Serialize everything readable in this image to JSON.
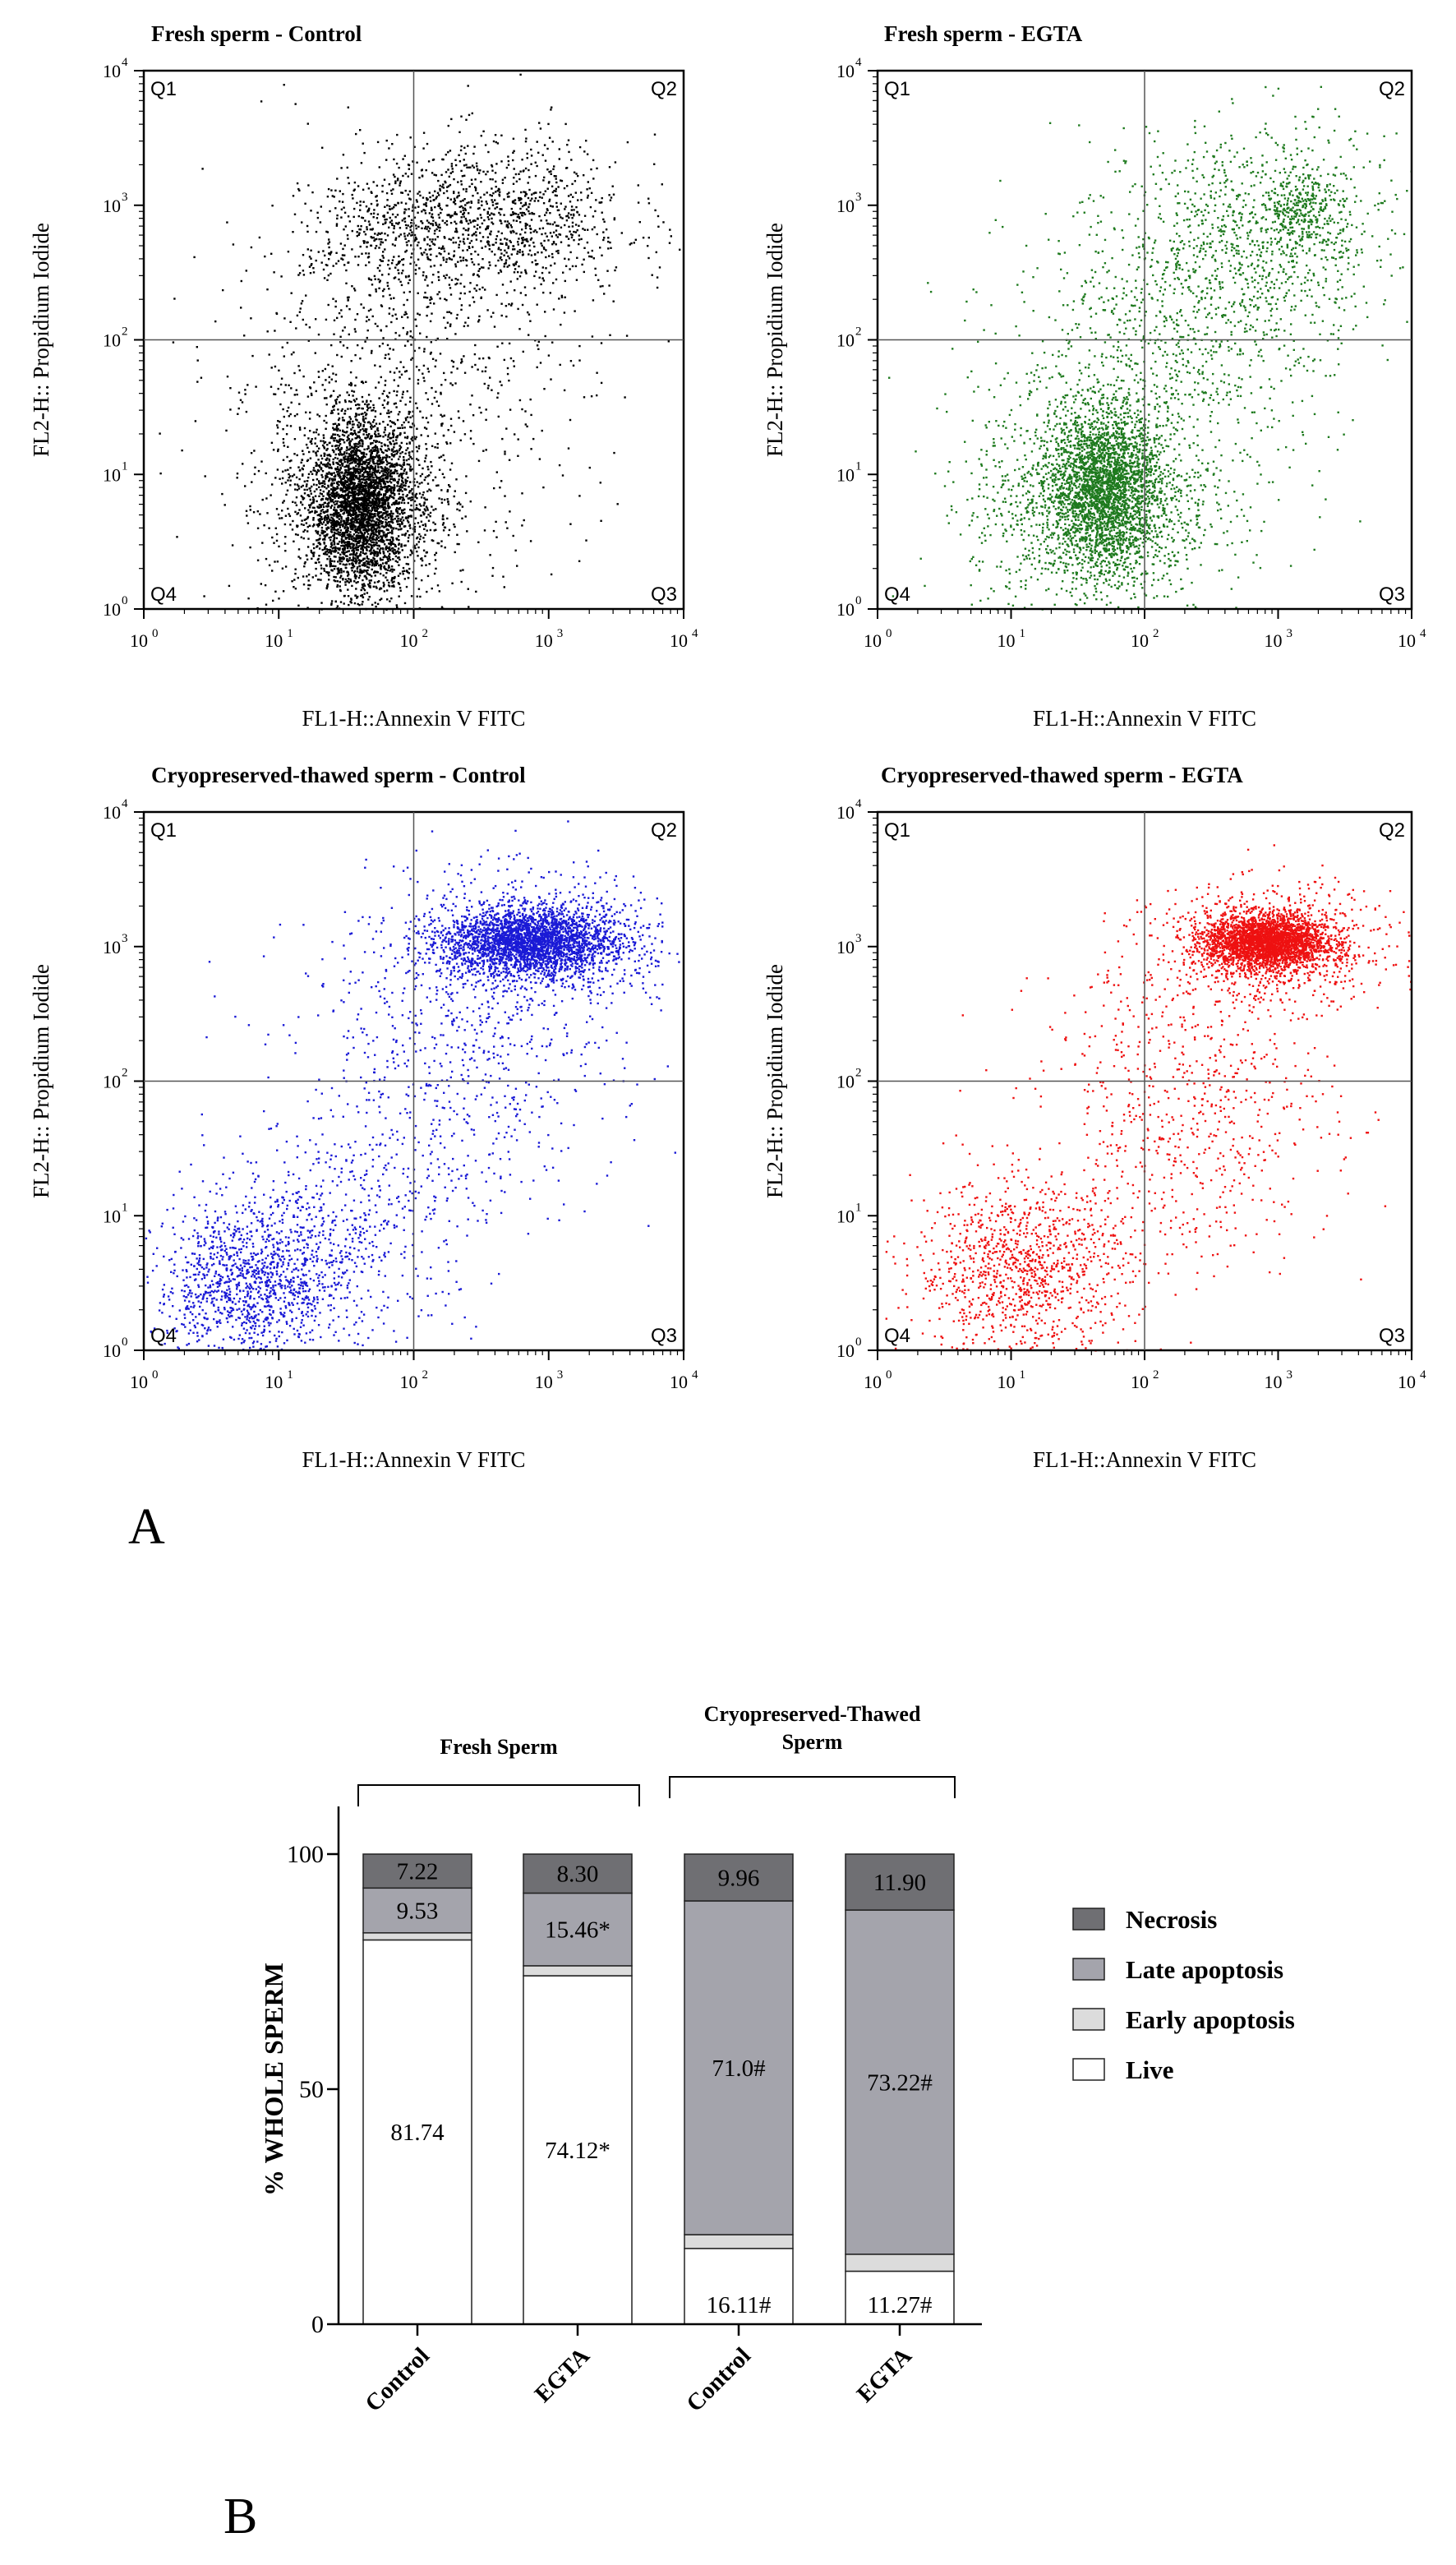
{
  "panel_a_label": "A",
  "panel_b_label": "B",
  "chart_data": [
    {
      "type": "scatter",
      "title": "Fresh sperm - Control",
      "xlabel": "FL1-H::Annexin V FITC",
      "ylabel": "FL2-H:: Propidium Iodide",
      "xscale": "log",
      "yscale": "log",
      "xlim": [
        1,
        10000
      ],
      "ylim": [
        1,
        10000
      ],
      "gate": [
        100,
        100
      ],
      "color": "#000000",
      "quadrants": [
        "Q1",
        "Q2",
        "Q3",
        "Q4"
      ],
      "x_tick_labels": [
        "10",
        "10",
        "10",
        "10",
        "10"
      ],
      "x_tick_exponents": [
        "0",
        "1",
        "2",
        "3",
        "4"
      ],
      "y_tick_labels": [
        "10",
        "10",
        "10",
        "10",
        "10"
      ],
      "y_tick_exponents": [
        "0",
        "1",
        "2",
        "3",
        "4"
      ],
      "clusters": [
        {
          "center": [
            40,
            6
          ],
          "spread": [
            0.18,
            0.3
          ],
          "n": 2800
        },
        {
          "center": [
            40,
            6
          ],
          "spread": [
            0.35,
            0.45
          ],
          "n": 1200
        },
        {
          "center": [
            400,
            800
          ],
          "spread": [
            0.5,
            0.3
          ],
          "n": 1100
        },
        {
          "center": [
            60,
            600
          ],
          "spread": [
            0.3,
            0.25
          ],
          "n": 300
        },
        {
          "center": [
            80,
            60
          ],
          "spread": [
            0.7,
            0.7
          ],
          "n": 800
        }
      ]
    },
    {
      "type": "scatter",
      "title": "Fresh sperm - EGTA",
      "xlabel": "FL1-H::Annexin V FITC",
      "ylabel": "FL2-H:: Propidium Iodide",
      "xscale": "log",
      "yscale": "log",
      "xlim": [
        1,
        10000
      ],
      "ylim": [
        1,
        10000
      ],
      "gate": [
        100,
        100
      ],
      "color": "#1e7a1e",
      "quadrants": [
        "Q1",
        "Q2",
        "Q3",
        "Q4"
      ],
      "x_tick_labels": [
        "10",
        "10",
        "10",
        "10",
        "10"
      ],
      "x_tick_exponents": [
        "0",
        "1",
        "2",
        "3",
        "4"
      ],
      "y_tick_labels": [
        "10",
        "10",
        "10",
        "10",
        "10"
      ],
      "y_tick_exponents": [
        "0",
        "1",
        "2",
        "3",
        "4"
      ],
      "clusters": [
        {
          "center": [
            50,
            8
          ],
          "spread": [
            0.2,
            0.28
          ],
          "n": 2200
        },
        {
          "center": [
            40,
            6
          ],
          "spread": [
            0.45,
            0.45
          ],
          "n": 1500
        },
        {
          "center": [
            800,
            600
          ],
          "spread": [
            0.5,
            0.4
          ],
          "n": 900
        },
        {
          "center": [
            1500,
            1000
          ],
          "spread": [
            0.15,
            0.15
          ],
          "n": 250
        },
        {
          "center": [
            150,
            80
          ],
          "spread": [
            0.6,
            0.6
          ],
          "n": 900
        }
      ]
    },
    {
      "type": "scatter",
      "title": "Cryopreserved-thawed sperm - Control",
      "xlabel": "FL1-H::Annexin V FITC",
      "ylabel": "FL2-H:: Propidium Iodide",
      "xscale": "log",
      "yscale": "log",
      "xlim": [
        1,
        10000
      ],
      "ylim": [
        1,
        10000
      ],
      "gate": [
        100,
        100
      ],
      "color": "#1a1ad6",
      "quadrants": [
        "Q1",
        "Q2",
        "Q3",
        "Q4"
      ],
      "x_tick_labels": [
        "10",
        "10",
        "10",
        "10",
        "10"
      ],
      "x_tick_exponents": [
        "0",
        "1",
        "2",
        "3",
        "4"
      ],
      "y_tick_labels": [
        "10",
        "10",
        "10",
        "10",
        "10"
      ],
      "y_tick_exponents": [
        "0",
        "1",
        "2",
        "3",
        "4"
      ],
      "clusters": [
        {
          "center": [
            700,
            1100
          ],
          "spread": [
            0.3,
            0.12
          ],
          "n": 2400
        },
        {
          "center": [
            900,
            1100
          ],
          "spread": [
            0.5,
            0.25
          ],
          "n": 900
        },
        {
          "center": [
            6,
            3
          ],
          "spread": [
            0.35,
            0.3
          ],
          "n": 1200
        },
        {
          "center": [
            30,
            8
          ],
          "spread": [
            0.5,
            0.4
          ],
          "n": 500
        },
        {
          "center": [
            200,
            150
          ],
          "spread": [
            0.6,
            0.6
          ],
          "n": 700
        }
      ]
    },
    {
      "type": "scatter",
      "title": "Cryopreserved-thawed sperm - EGTA",
      "xlabel": "FL1-H::Annexin V FITC",
      "ylabel": "FL2-H:: Propidium Iodide",
      "xscale": "log",
      "yscale": "log",
      "xlim": [
        1,
        10000
      ],
      "ylim": [
        1,
        10000
      ],
      "gate": [
        100,
        100
      ],
      "color": "#ee1111",
      "quadrants": [
        "Q1",
        "Q2",
        "Q3",
        "Q4"
      ],
      "x_tick_labels": [
        "10",
        "10",
        "10",
        "10",
        "10"
      ],
      "x_tick_exponents": [
        "0",
        "1",
        "2",
        "3",
        "4"
      ],
      "y_tick_labels": [
        "10",
        "10",
        "10",
        "10",
        "10"
      ],
      "y_tick_exponents": [
        "0",
        "1",
        "2",
        "3",
        "4"
      ],
      "clusters": [
        {
          "center": [
            800,
            1100
          ],
          "spread": [
            0.22,
            0.1
          ],
          "n": 2600
        },
        {
          "center": [
            900,
            1000
          ],
          "spread": [
            0.45,
            0.22
          ],
          "n": 900
        },
        {
          "center": [
            12,
            4
          ],
          "spread": [
            0.4,
            0.33
          ],
          "n": 1100
        },
        {
          "center": [
            200,
            60
          ],
          "spread": [
            0.55,
            0.6
          ],
          "n": 700
        }
      ]
    },
    {
      "type": "bar",
      "stacked": true,
      "ylabel": "% WHOLE SPERM",
      "ylim": [
        0,
        100
      ],
      "y_ticks": [
        0,
        50,
        100
      ],
      "y_tick_labels": [
        "0",
        "50",
        "100"
      ],
      "categories": [
        "Control",
        "EGTA",
        "Control",
        "EGTA"
      ],
      "groups": [
        {
          "label": "Fresh Sperm",
          "categories": [
            0,
            1
          ]
        },
        {
          "label": "Cryopreserved-Thawed Sperm",
          "categories": [
            2,
            3
          ]
        }
      ],
      "series": [
        {
          "name": "Live",
          "color": "#ffffff",
          "values": [
            81.74,
            74.12,
            16.11,
            11.27
          ],
          "labels": [
            "81.74",
            "74.12*",
            "16.11#",
            "11.27#"
          ]
        },
        {
          "name": "Early apoptosis",
          "color": "#dcdcdc",
          "values": [
            1.51,
            2.12,
            2.93,
            3.61
          ],
          "labels": [
            "",
            "",
            "",
            ""
          ]
        },
        {
          "name": "Late apoptosis",
          "color": "#a4a4ac",
          "values": [
            9.53,
            15.46,
            71.0,
            73.22
          ],
          "labels": [
            "9.53",
            "15.46*",
            "71.0#",
            "73.22#"
          ]
        },
        {
          "name": "Necrosis",
          "color": "#6f6f73",
          "values": [
            7.22,
            8.3,
            9.96,
            11.9
          ],
          "labels": [
            "7.22",
            "8.30",
            "9.96",
            "11.90"
          ]
        }
      ],
      "legend_order": [
        "Necrosis",
        "Late apoptosis",
        "Early apoptosis",
        "Live"
      ],
      "legend_position": "right"
    }
  ]
}
